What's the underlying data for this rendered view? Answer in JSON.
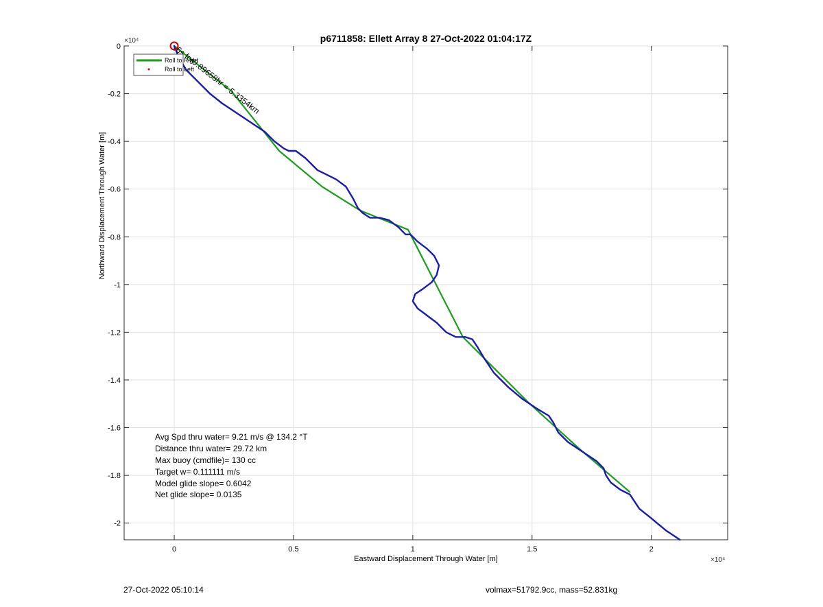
{
  "footer": {
    "left_text": "27-Oct-2022 05:10:14",
    "right_text": "volmax=51792.9cc, mass=52.831kg"
  },
  "chart_data": {
    "type": "line",
    "title": "p6711858: Ellett Array 8 27-Oct-2022 01:04:17Z",
    "xlabel": "Eastward Displacement Through Water [m]",
    "ylabel": "Northward Displacement Through Water [m]",
    "x_exponent_label": "×10⁴",
    "y_exponent_label": "×10⁴",
    "xlim": [
      -0.21,
      2.32
    ],
    "ylim": [
      -2.07,
      0.0
    ],
    "x_ticks": [
      0,
      0.5,
      1,
      1.5,
      2
    ],
    "x_tick_labels": [
      "0",
      "0.5",
      "1",
      "1.5",
      "2"
    ],
    "y_ticks": [
      0,
      -0.2,
      -0.4,
      -0.6,
      -0.8,
      -1,
      -1.2,
      -1.4,
      -1.6,
      -1.8,
      -2
    ],
    "y_tick_labels": [
      "0",
      "-0.2",
      "-0.4",
      "-0.6",
      "-0.8",
      "-1",
      "-1.2",
      "-1.4",
      "-1.6",
      "-1.8",
      "-2"
    ],
    "grid": true,
    "legend": {
      "placement": "top-left",
      "entries": [
        "Roll to Right",
        "Roll to Left"
      ]
    },
    "colors": {
      "green": "#1a9e1a",
      "blue": "#1a1ab4",
      "red": "#cc0000"
    },
    "series": [
      {
        "name": "Roll to Right",
        "color": "#1a9e1a",
        "x": [
          0.0,
          0.24,
          0.44,
          0.62,
          0.78,
          0.98,
          1.21,
          1.48,
          1.7,
          1.91
        ],
        "y": [
          0.0,
          -0.19,
          -0.44,
          -0.59,
          -0.69,
          -0.77,
          -1.22,
          -1.49,
          -1.69,
          -1.87
        ]
      },
      {
        "name": "Roll to Left",
        "color": "#1a1ab4",
        "x": [
          0.0,
          0.02,
          0.05,
          0.1,
          0.15,
          0.2,
          0.26,
          0.32,
          0.38,
          0.42,
          0.46,
          0.48,
          0.51,
          0.55,
          0.6,
          0.64,
          0.68,
          0.72,
          0.75,
          0.77,
          0.79,
          0.82,
          0.86,
          0.9,
          0.94,
          0.97,
          0.99,
          1.02,
          1.06,
          1.09,
          1.11,
          1.1,
          1.08,
          1.04,
          1.01,
          1.0,
          1.02,
          1.06,
          1.1,
          1.14,
          1.18,
          1.22,
          1.25,
          1.27,
          1.3,
          1.34,
          1.4,
          1.46,
          1.52,
          1.57,
          1.59,
          1.61,
          1.65,
          1.71,
          1.77,
          1.8,
          1.81,
          1.83,
          1.87,
          1.91,
          1.95,
          2.0,
          2.06,
          2.12
        ],
        "y": [
          0.0,
          -0.05,
          -0.1,
          -0.15,
          -0.2,
          -0.24,
          -0.28,
          -0.32,
          -0.36,
          -0.4,
          -0.43,
          -0.44,
          -0.44,
          -0.47,
          -0.52,
          -0.54,
          -0.56,
          -0.59,
          -0.64,
          -0.68,
          -0.7,
          -0.72,
          -0.72,
          -0.73,
          -0.76,
          -0.79,
          -0.79,
          -0.82,
          -0.85,
          -0.88,
          -0.92,
          -0.96,
          -0.99,
          -1.02,
          -1.04,
          -1.07,
          -1.1,
          -1.13,
          -1.16,
          -1.2,
          -1.22,
          -1.22,
          -1.23,
          -1.26,
          -1.31,
          -1.37,
          -1.43,
          -1.48,
          -1.52,
          -1.55,
          -1.58,
          -1.62,
          -1.66,
          -1.7,
          -1.74,
          -1.77,
          -1.8,
          -1.83,
          -1.86,
          -1.88,
          -1.94,
          -1.98,
          -2.03,
          -2.07
        ]
      }
    ],
    "start_marker": {
      "x": 0.0,
      "y": 0.0,
      "color": "#cc0000"
    },
    "rotated_annotation": "6s for0.89658hr = 5.3354km",
    "stats_lines": [
      "Avg Spd thru water=  9.21 m/s @ 134.2 °T",
      "Distance thru water= 29.72 km",
      "Max buoy (cmdfile)= 130 cc",
      "Target w= 0.111111 m/s",
      "Model glide slope= 0.6042",
      "Net glide slope= 0.0135"
    ]
  }
}
